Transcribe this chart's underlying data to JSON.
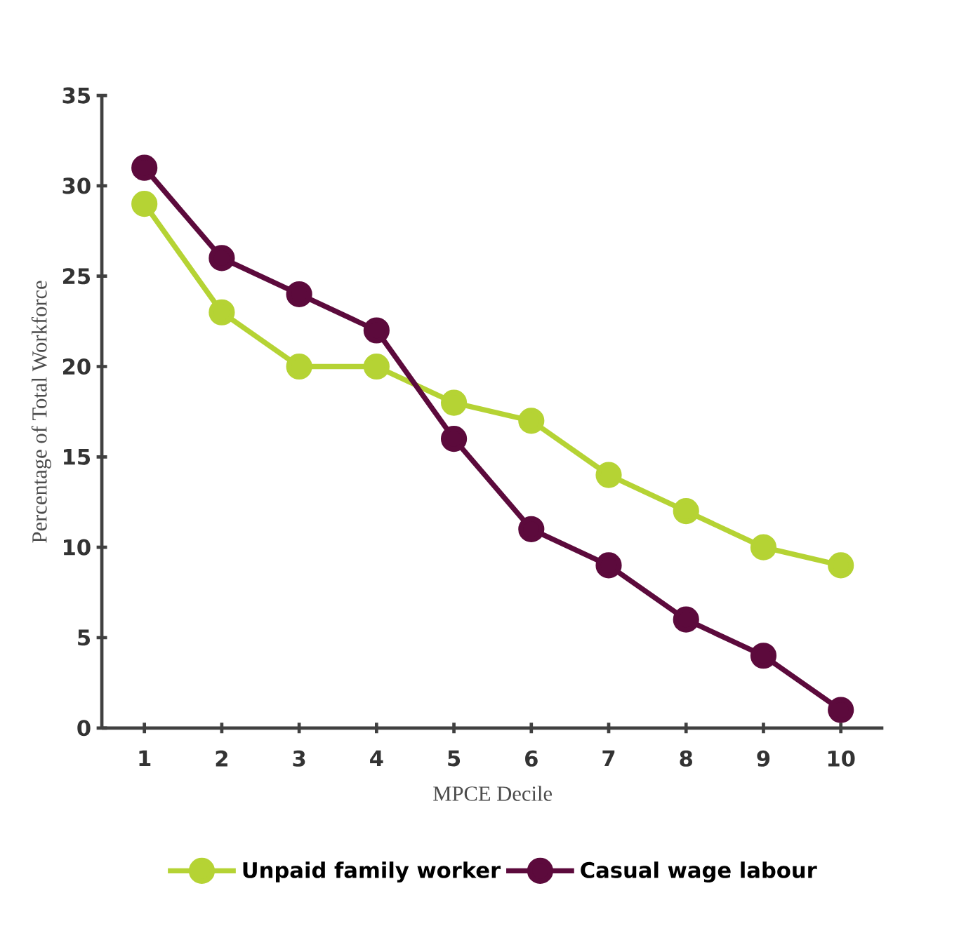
{
  "chart_data": {
    "type": "line",
    "xlabel": "MPCE Decile",
    "ylabel": "Percentage of Total Workforce",
    "categories": [
      "1",
      "2",
      "3",
      "4",
      "5",
      "6",
      "7",
      "8",
      "9",
      "10"
    ],
    "series": [
      {
        "name": "Unpaid family worker",
        "color": "#b5d334",
        "values": [
          29,
          23,
          20,
          20,
          18,
          17,
          14,
          12,
          10,
          9
        ]
      },
      {
        "name": "Casual wage labour",
        "color": "#5c0a3c",
        "values": [
          31,
          26,
          24,
          22,
          16,
          11,
          9,
          6,
          4,
          1
        ]
      }
    ],
    "ylim": [
      0,
      35
    ],
    "yticks": [
      0,
      5,
      10,
      15,
      20,
      25,
      30,
      35
    ],
    "grid": false,
    "legend": "bottom",
    "marker": "circle",
    "line_style": "solid"
  }
}
